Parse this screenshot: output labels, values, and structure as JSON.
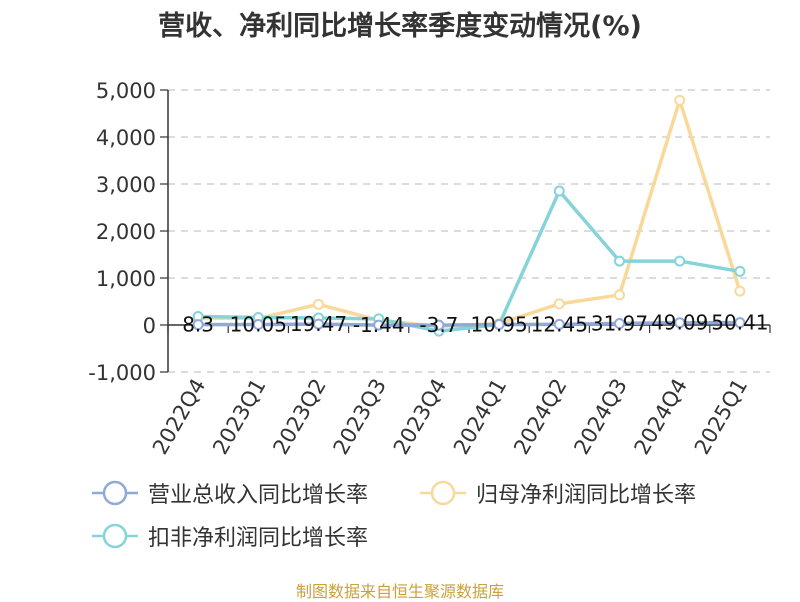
{
  "title": "营收、净利同比增长率季度变动情况(%)",
  "source": "制图数据来自恒生聚源数据库",
  "chart_data": {
    "type": "line",
    "categories": [
      "2022Q4",
      "2023Q1",
      "2023Q2",
      "2023Q3",
      "2023Q4",
      "2024Q1",
      "2024Q2",
      "2024Q3",
      "2024Q4",
      "2025Q1"
    ],
    "ylim": [
      -1000,
      5000
    ],
    "yticks": [
      -1000,
      0,
      1000,
      2000,
      3000,
      4000,
      5000
    ],
    "ytick_labels": [
      "-1,000",
      "0",
      "1,000",
      "2,000",
      "3,000",
      "4,000",
      "5,000"
    ],
    "grid": true,
    "legend_position": "bottom",
    "series": [
      {
        "name": "营业总收入同比增长率",
        "color": "#8fa9d8",
        "values": [
          8.3,
          10.05,
          19.47,
          -1.44,
          -3.7,
          10.95,
          12.45,
          31.97,
          49.09,
          50.41
        ],
        "labels": [
          "8.3",
          "10.05",
          "19.47",
          "-1.44",
          "-3.7",
          "10.95",
          "12.45",
          "31.97",
          "49.09",
          "50.41"
        ]
      },
      {
        "name": "归母净利润同比增长率",
        "color": "#f9d99a",
        "values": [
          150,
          140,
          440,
          100,
          -30,
          30,
          450,
          640,
          4780,
          720
        ]
      },
      {
        "name": "扣非净利润同比增长率",
        "color": "#86d3d8",
        "values": [
          180,
          160,
          150,
          130,
          -130,
          10,
          2850,
          1360,
          1360,
          1140
        ]
      }
    ]
  }
}
